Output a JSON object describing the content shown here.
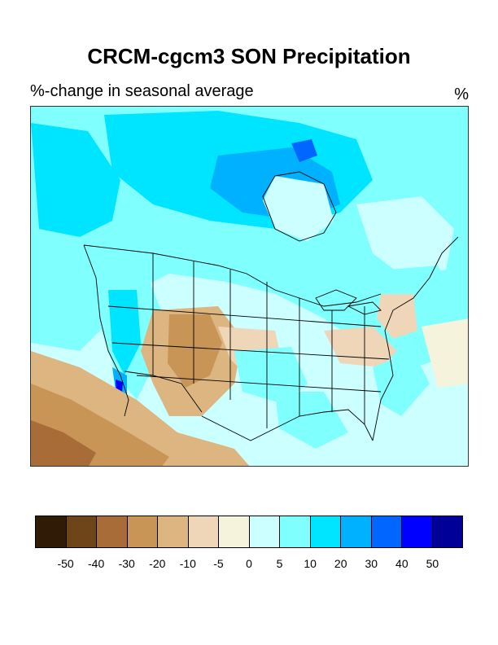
{
  "title": "CRCM-cgcm3 SON Precipitation",
  "subtitle": "%-change in seasonal average",
  "units": "%",
  "colorbar": {
    "colors": [
      "#2f1b06",
      "#6e4519",
      "#a86c38",
      "#c99556",
      "#dcb581",
      "#f0d6b8",
      "#f5f3dc",
      "#ccffff",
      "#80ffff",
      "#00e5ff",
      "#00b1ff",
      "#0066ff",
      "#0000ff",
      "#000099"
    ],
    "labels": [
      "-50",
      "-40",
      "-30",
      "-20",
      "-10",
      "-5",
      "0",
      "5",
      "10",
      "20",
      "30",
      "40",
      "50"
    ]
  },
  "map": {
    "region": "North America",
    "palette": {
      "ocean": "#a8f4fb",
      "light_cyan": "#ccffff",
      "cyan": "#80ffff",
      "aqua": "#00e5ff",
      "sky": "#00b1ff",
      "blue": "#0066ff",
      "deep_blue": "#0000ff",
      "neutral": "#f5f3dc",
      "tan_light": "#f0d6b8",
      "tan": "#dcb581",
      "brown": "#c99556",
      "dark_brown": "#a86c38",
      "lines": "#000000"
    }
  }
}
